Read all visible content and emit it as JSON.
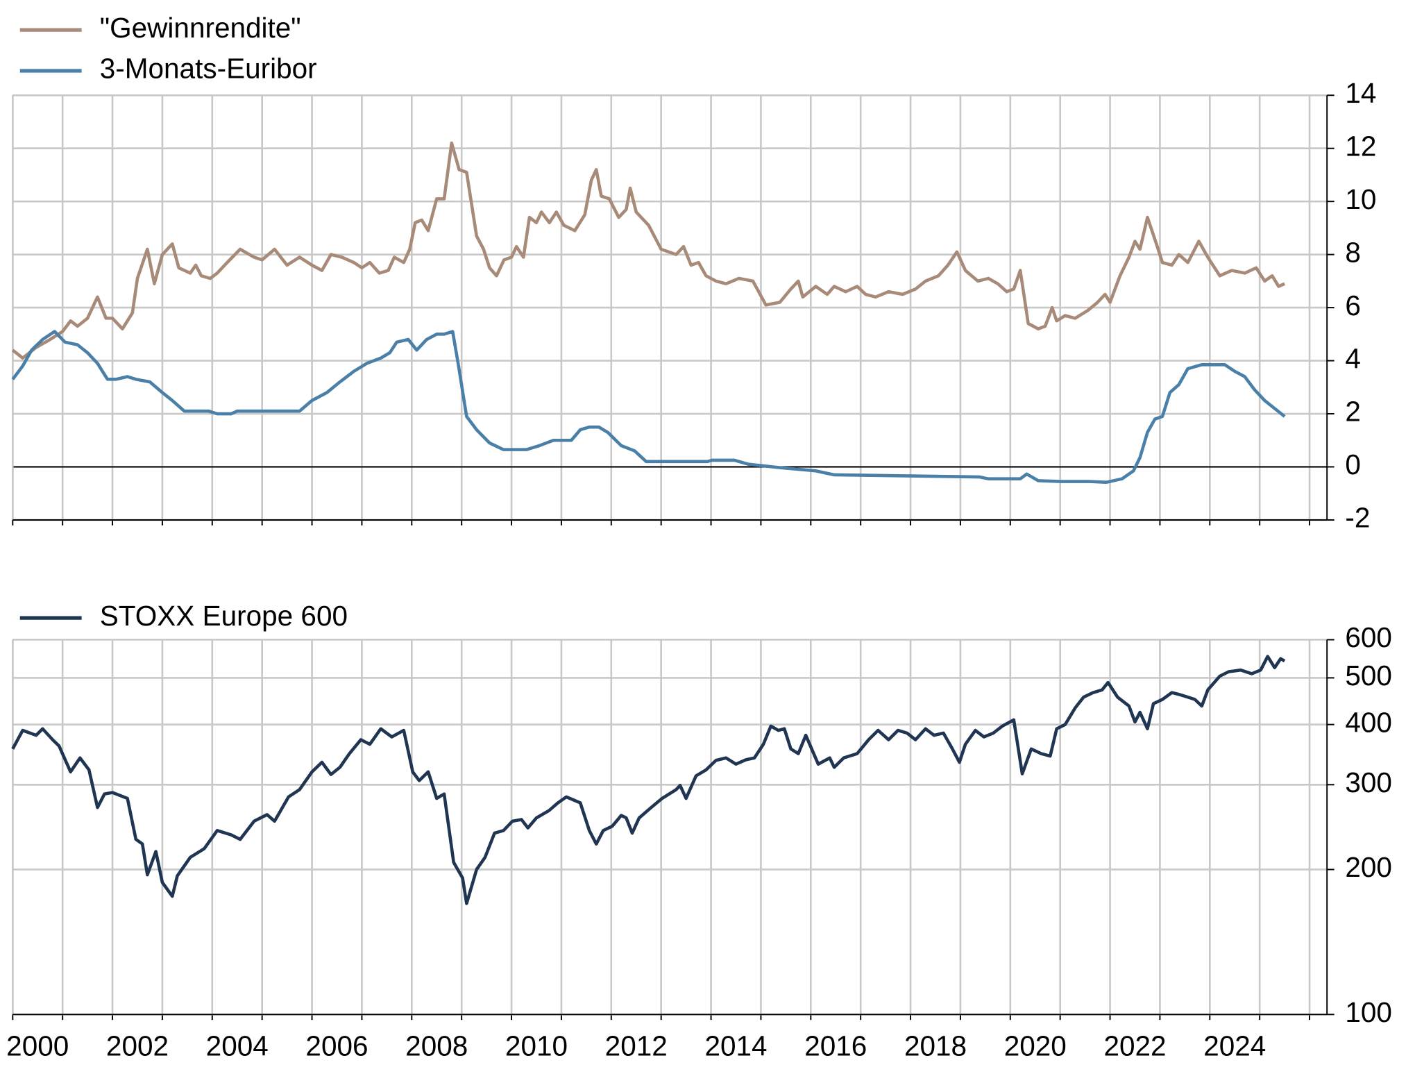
{
  "chart_data": [
    {
      "type": "line",
      "ylim": [
        -2,
        14
      ],
      "yticks": [
        -2,
        0,
        2,
        4,
        6,
        8,
        10,
        12,
        14
      ],
      "grid": true,
      "y_axis_side": "right",
      "legend": "top left",
      "xlim": [
        2000,
        2026.35
      ],
      "xgrid": [
        2000,
        2001,
        2002,
        2003,
        2004,
        2005,
        2006,
        2007,
        2008,
        2009,
        2010,
        2011,
        2012,
        2013,
        2014,
        2015,
        2016,
        2017,
        2018,
        2019,
        2020,
        2021,
        2022,
        2023,
        2024,
        2025,
        2026
      ],
      "series": [
        {
          "name": "\"Gewinnrendite\"",
          "color": "#a88a78",
          "x": [
            2000.0,
            2000.2,
            2000.47,
            2000.75,
            2001.0,
            2001.16,
            2001.3,
            2001.5,
            2001.7,
            2001.87,
            2002.0,
            2002.2,
            2002.4,
            2002.5,
            2002.7,
            2002.84,
            2003.0,
            2003.2,
            2003.33,
            2003.56,
            2003.67,
            2003.78,
            2003.96,
            2004.1,
            2004.3,
            2004.56,
            2004.84,
            2005.0,
            2005.25,
            2005.5,
            2005.75,
            2006.0,
            2006.2,
            2006.38,
            2006.6,
            2006.84,
            2007.0,
            2007.16,
            2007.35,
            2007.53,
            2007.65,
            2007.84,
            2007.96,
            2008.07,
            2008.2,
            2008.33,
            2008.5,
            2008.65,
            2008.8,
            2008.95,
            2009.1,
            2009.3,
            2009.44,
            2009.56,
            2009.7,
            2009.85,
            2010.0,
            2010.1,
            2010.24,
            2010.36,
            2010.5,
            2010.6,
            2010.76,
            2010.9,
            2011.05,
            2011.27,
            2011.47,
            2011.6,
            2011.7,
            2011.8,
            2011.96,
            2012.15,
            2012.3,
            2012.38,
            2012.5,
            2012.75,
            2013.0,
            2013.3,
            2013.45,
            2013.6,
            2013.75,
            2013.9,
            2014.1,
            2014.3,
            2014.56,
            2014.84,
            2015.1,
            2015.38,
            2015.6,
            2015.75,
            2015.84,
            2016.1,
            2016.33,
            2016.47,
            2016.7,
            2016.93,
            2017.1,
            2017.3,
            2017.56,
            2017.84,
            2018.1,
            2018.3,
            2018.56,
            2018.75,
            2018.93,
            2019.1,
            2019.35,
            2019.56,
            2019.75,
            2019.93,
            2020.07,
            2020.2,
            2020.36,
            2020.56,
            2020.7,
            2020.84,
            2020.93,
            2021.1,
            2021.3,
            2021.56,
            2021.75,
            2021.9,
            2022.0,
            2022.2,
            2022.38,
            2022.5,
            2022.6,
            2022.75,
            2022.93,
            2023.05,
            2023.24,
            2023.38,
            2023.56,
            2023.78,
            2023.96,
            2024.2,
            2024.44,
            2024.7,
            2024.93,
            2025.1,
            2025.25,
            2025.38,
            2025.5
          ],
          "values": [
            4.4,
            4.1,
            4.5,
            4.8,
            5.1,
            5.5,
            5.3,
            5.6,
            6.4,
            5.6,
            5.6,
            5.2,
            5.8,
            7.1,
            8.2,
            6.9,
            8.0,
            8.4,
            7.5,
            7.3,
            7.6,
            7.2,
            7.1,
            7.3,
            7.7,
            8.2,
            7.9,
            7.8,
            8.2,
            7.6,
            7.9,
            7.6,
            7.4,
            8.0,
            7.9,
            7.7,
            7.5,
            7.7,
            7.3,
            7.4,
            7.9,
            7.7,
            8.2,
            9.2,
            9.3,
            8.9,
            10.1,
            10.1,
            12.2,
            11.2,
            11.1,
            8.7,
            8.2,
            7.5,
            7.2,
            7.8,
            7.9,
            8.3,
            7.9,
            9.4,
            9.2,
            9.6,
            9.2,
            9.6,
            9.1,
            8.9,
            9.5,
            10.8,
            11.2,
            10.2,
            10.1,
            9.4,
            9.7,
            10.5,
            9.6,
            9.1,
            8.2,
            8.0,
            8.3,
            7.6,
            7.7,
            7.2,
            7.0,
            6.9,
            7.1,
            7.0,
            6.1,
            6.2,
            6.7,
            7.0,
            6.4,
            6.8,
            6.5,
            6.8,
            6.6,
            6.8,
            6.5,
            6.4,
            6.6,
            6.5,
            6.7,
            7.0,
            7.2,
            7.6,
            8.1,
            7.4,
            7.0,
            7.1,
            6.9,
            6.6,
            6.7,
            7.4,
            5.4,
            5.2,
            5.3,
            6.0,
            5.5,
            5.7,
            5.6,
            5.9,
            6.2,
            6.5,
            6.2,
            7.2,
            7.9,
            8.5,
            8.2,
            9.4,
            8.4,
            7.7,
            7.6,
            8.0,
            7.7,
            8.5,
            7.9,
            7.2,
            7.4,
            7.3,
            7.5,
            7.0,
            7.2,
            6.8,
            6.9
          ]
        },
        {
          "name": "3-Monats-Euribor",
          "color": "#4a7fa8",
          "x": [
            2000.0,
            2000.2,
            2000.38,
            2000.6,
            2000.84,
            2001.05,
            2001.3,
            2001.5,
            2001.7,
            2001.9,
            2002.07,
            2002.3,
            2002.47,
            2002.75,
            2003.0,
            2003.2,
            2003.44,
            2003.93,
            2004.1,
            2004.38,
            2004.5,
            2005.75,
            2006.0,
            2006.3,
            2006.56,
            2006.84,
            2007.1,
            2007.38,
            2007.56,
            2007.7,
            2007.93,
            2008.1,
            2008.3,
            2008.5,
            2008.65,
            2008.82,
            2008.93,
            2009.1,
            2009.3,
            2009.56,
            2009.84,
            2010.3,
            2010.56,
            2010.84,
            2011.2,
            2011.38,
            2011.56,
            2011.75,
            2011.93,
            2012.2,
            2012.47,
            2012.7,
            2013.93,
            2014.02,
            2014.47,
            2014.75,
            2015.38,
            2016.1,
            2016.47,
            2019.38,
            2019.56,
            2020.2,
            2020.33,
            2020.56,
            2021.0,
            2021.56,
            2021.93,
            2022.24,
            2022.47,
            2022.6,
            2022.75,
            2022.9,
            2023.05,
            2023.2,
            2023.38,
            2023.56,
            2023.84,
            2024.3,
            2024.5,
            2024.7,
            2024.9,
            2025.1,
            2025.3,
            2025.5
          ],
          "values": [
            3.3,
            3.8,
            4.4,
            4.8,
            5.1,
            4.7,
            4.6,
            4.3,
            3.9,
            3.3,
            3.3,
            3.4,
            3.3,
            3.2,
            2.8,
            2.5,
            2.1,
            2.1,
            2.0,
            2.0,
            2.1,
            2.1,
            2.5,
            2.8,
            3.2,
            3.6,
            3.9,
            4.1,
            4.3,
            4.7,
            4.8,
            4.4,
            4.8,
            5.0,
            5.0,
            5.1,
            3.9,
            1.9,
            1.4,
            0.9,
            0.65,
            0.65,
            0.8,
            1.0,
            1.0,
            1.4,
            1.5,
            1.5,
            1.3,
            0.8,
            0.6,
            0.2,
            0.2,
            0.25,
            0.25,
            0.1,
            -0.03,
            -0.15,
            -0.3,
            -0.38,
            -0.45,
            -0.45,
            -0.27,
            -0.52,
            -0.55,
            -0.55,
            -0.58,
            -0.45,
            -0.15,
            0.35,
            1.3,
            1.8,
            1.9,
            2.8,
            3.1,
            3.7,
            3.85,
            3.85,
            3.6,
            3.4,
            2.9,
            2.5,
            2.2,
            1.9
          ]
        }
      ]
    },
    {
      "type": "line",
      "log_scale": true,
      "ylim": [
        100,
        600
      ],
      "yticks": [
        100,
        200,
        300,
        400,
        500,
        600
      ],
      "grid": true,
      "y_axis_side": "right",
      "legend": "top left",
      "xlim": [
        2000,
        2026.35
      ],
      "xgrid": [
        2000,
        2001,
        2002,
        2003,
        2004,
        2005,
        2006,
        2007,
        2008,
        2009,
        2010,
        2011,
        2012,
        2013,
        2014,
        2015,
        2016,
        2017,
        2018,
        2019,
        2020,
        2021,
        2022,
        2023,
        2024,
        2025,
        2026
      ],
      "xticks": [
        2000,
        2002,
        2004,
        2006,
        2008,
        2010,
        2012,
        2014,
        2016,
        2018,
        2020,
        2022,
        2024
      ],
      "series": [
        {
          "name": "STOXX Europe 600",
          "color": "#1f3552",
          "x": [
            2000.0,
            2000.2,
            2000.47,
            2000.6,
            2000.8,
            2000.93,
            2001.16,
            2001.35,
            2001.53,
            2001.7,
            2001.84,
            2002.0,
            2002.3,
            2002.47,
            2002.6,
            2002.7,
            2002.87,
            2003.0,
            2003.2,
            2003.3,
            2003.56,
            2003.84,
            2004.1,
            2004.38,
            2004.56,
            2004.84,
            2005.1,
            2005.25,
            2005.53,
            2005.75,
            2006.0,
            2006.2,
            2006.38,
            2006.56,
            2006.75,
            2006.98,
            2007.16,
            2007.38,
            2007.6,
            2007.84,
            2008.02,
            2008.15,
            2008.33,
            2008.5,
            2008.65,
            2008.84,
            2009.02,
            2009.1,
            2009.3,
            2009.47,
            2009.66,
            2009.84,
            2010.02,
            2010.2,
            2010.33,
            2010.5,
            2010.75,
            2010.93,
            2011.1,
            2011.38,
            2011.56,
            2011.7,
            2011.84,
            2012.02,
            2012.2,
            2012.3,
            2012.42,
            2012.56,
            2012.8,
            2013.02,
            2013.3,
            2013.38,
            2013.5,
            2013.7,
            2013.9,
            2014.1,
            2014.3,
            2014.5,
            2014.7,
            2014.87,
            2015.05,
            2015.2,
            2015.35,
            2015.47,
            2015.6,
            2015.75,
            2015.9,
            2016.15,
            2016.38,
            2016.47,
            2016.66,
            2016.93,
            2017.16,
            2017.35,
            2017.56,
            2017.75,
            2017.93,
            2018.1,
            2018.3,
            2018.47,
            2018.66,
            2018.84,
            2018.98,
            2019.1,
            2019.3,
            2019.47,
            2019.66,
            2019.84,
            2020.07,
            2020.24,
            2020.42,
            2020.62,
            2020.8,
            2020.93,
            2021.1,
            2021.3,
            2021.47,
            2021.66,
            2021.84,
            2021.96,
            2022.15,
            2022.38,
            2022.5,
            2022.6,
            2022.75,
            2022.87,
            2023.05,
            2023.24,
            2023.38,
            2023.56,
            2023.7,
            2023.84,
            2023.96,
            2024.2,
            2024.38,
            2024.62,
            2024.84,
            2025.02,
            2025.16,
            2025.3,
            2025.42,
            2025.5
          ],
          "values": [
            356,
            389,
            380,
            392,
            372,
            361,
            319,
            341,
            322,
            269,
            287,
            289,
            281,
            231,
            226,
            195,
            218,
            188,
            176,
            194,
            212,
            221,
            241,
            236,
            231,
            252,
            260,
            252,
            283,
            293,
            319,
            334,
            315,
            326,
            348,
            372,
            364,
            392,
            377,
            389,
            319,
            306,
            319,
            281,
            287,
            207,
            192,
            170,
            200,
            212,
            238,
            241,
            252,
            254,
            244,
            256,
            265,
            275,
            283,
            275,
            241,
            226,
            241,
            246,
            259,
            256,
            238,
            256,
            269,
            281,
            293,
            299,
            281,
            313,
            322,
            337,
            341,
            331,
            338,
            341,
            364,
            397,
            389,
            392,
            356,
            348,
            380,
            331,
            341,
            326,
            341,
            348,
            372,
            389,
            372,
            389,
            384,
            372,
            392,
            380,
            384,
            356,
            334,
            364,
            389,
            377,
            384,
            397,
            409,
            316,
            356,
            348,
            344,
            392,
            400,
            433,
            456,
            466,
            472,
            489,
            456,
            437,
            405,
            424,
            392,
            442,
            451,
            466,
            462,
            456,
            451,
            437,
            472,
            504,
            515,
            519,
            510,
            519,
            554,
            525,
            548,
            542
          ]
        }
      ]
    }
  ]
}
